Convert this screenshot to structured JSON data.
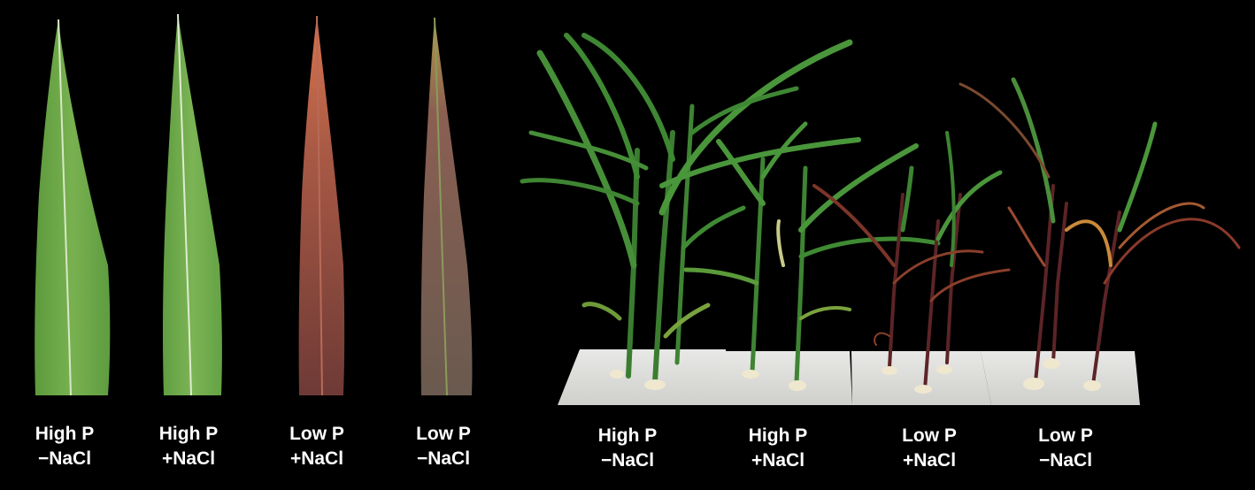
{
  "panels": {
    "leaves": [
      {
        "line1": "High P",
        "line2": "−NaCl",
        "tint": "#6fa84a"
      },
      {
        "line1": "High P",
        "line2": "+NaCl",
        "tint": "#74ab4d"
      },
      {
        "line1": "Low P",
        "line2": "+NaCl",
        "tint": "#8a4a3a"
      },
      {
        "line1": "Low P",
        "line2": "−NaCl",
        "tint": "#7c5a55"
      }
    ],
    "plants": [
      {
        "line1": "High P",
        "line2": "−NaCl",
        "tint": "#3e8a33"
      },
      {
        "line1": "High P",
        "line2": "+NaCl",
        "tint": "#459438"
      },
      {
        "line1": "Low P",
        "line2": "+NaCl",
        "tint": "#6b2a25"
      },
      {
        "line1": "Low P",
        "line2": "−NaCl",
        "tint": "#6f3024"
      }
    ]
  }
}
